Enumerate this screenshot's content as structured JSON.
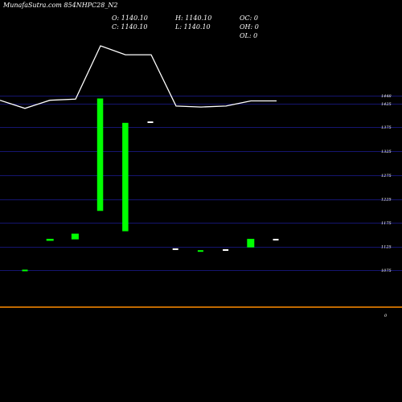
{
  "header": {
    "title": "MunafaSutra.com",
    "symbol": "854NHPC28_N2"
  },
  "ohlc": {
    "open": "O: 1140.10",
    "high": "H: 1140.10",
    "close": "C: 1140.10",
    "low": "L: 1140.10",
    "oc": "OC: 0",
    "oh": "OH: 0",
    "ol": "OL: 0"
  },
  "chart_data": [
    {
      "type": "bar",
      "title": "854NHPC28_N2",
      "y_ticks": [
        1448,
        1425,
        1375,
        1325,
        1275,
        1225,
        1175,
        1125,
        1075
      ],
      "ylim": [
        1050,
        1458
      ],
      "bars": [
        {
          "open": 1075,
          "close": 1076,
          "color": "#00ff00"
        },
        {
          "open": 1137,
          "close": 1141,
          "color": "#00ff00"
        },
        {
          "open": 1140,
          "close": 1152,
          "color": "#00ff00"
        },
        {
          "open": 1200,
          "close": 1440,
          "color": "#00ff00"
        },
        {
          "open": 1157,
          "close": 1384,
          "color": "#00ff00"
        },
        {
          "open": 1386,
          "close": 1387,
          "color": "#ffffff"
        },
        {
          "open": 1120,
          "close": 1121,
          "color": "#ffffff"
        },
        {
          "open": 1115,
          "close": 1117,
          "color": "#00ff00"
        },
        {
          "open": 1118,
          "close": 1119,
          "color": "#ffffff"
        },
        {
          "open": 1123,
          "close": 1141,
          "color": "#00ff00"
        },
        {
          "open": 1140,
          "close": 1141,
          "color": "#ffffff"
        }
      ],
      "line_values": [
        1435,
        1415,
        1435,
        1438,
        1560,
        1540,
        1540,
        1420,
        1418,
        1420,
        1433,
        1433
      ],
      "volume_axis_label": "0",
      "grid": true,
      "grid_color": "#151570",
      "line_color": "#ffffff",
      "baseline_color": "#ff8c00"
    }
  ]
}
